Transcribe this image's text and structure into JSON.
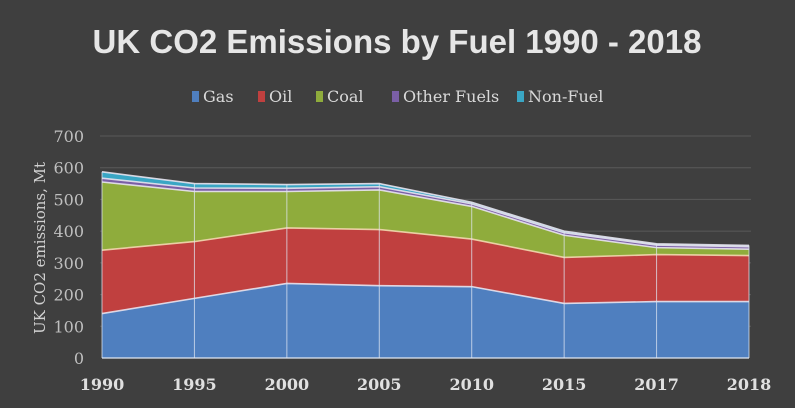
{
  "chart_data": {
    "type": "area",
    "stacked": true,
    "title": "UK CO2 Emissions by Fuel 1990 - 2018",
    "xlabel": "",
    "ylabel": "UK CO2 emissions, Mt",
    "ylim": [
      0,
      700
    ],
    "yticks": [
      "0",
      "100",
      "200",
      "300",
      "400",
      "500",
      "600",
      "700"
    ],
    "ytick_values": [
      0,
      100,
      200,
      300,
      400,
      500,
      600,
      700
    ],
    "categories": [
      "1990",
      "1995",
      "2000",
      "2005",
      "2010",
      "2015",
      "2017",
      "2018"
    ],
    "grid": true,
    "legend_position": "top",
    "series": [
      {
        "name": "Gas",
        "color": "#4f7fbf",
        "values": [
          140,
          188,
          235,
          228,
          225,
          172,
          178,
          178
        ]
      },
      {
        "name": "Oil",
        "color": "#c0403f",
        "values": [
          200,
          179,
          175,
          177,
          150,
          145,
          148,
          145
        ]
      },
      {
        "name": "Coal",
        "color": "#8fac3c",
        "values": [
          215,
          158,
          115,
          125,
          103,
          70,
          22,
          20
        ]
      },
      {
        "name": "Other Fuels",
        "color": "#7a5fa6",
        "values": [
          12,
          11,
          10,
          10,
          8,
          8,
          8,
          8
        ]
      },
      {
        "name": "Non-Fuel",
        "color": "#3aa6c4",
        "values": [
          20,
          14,
          12,
          10,
          5,
          5,
          4,
          4
        ]
      }
    ],
    "background": "#3f3f3f",
    "gridline_color": "#5a5a5a",
    "separator_color": "#e8e4f0"
  }
}
